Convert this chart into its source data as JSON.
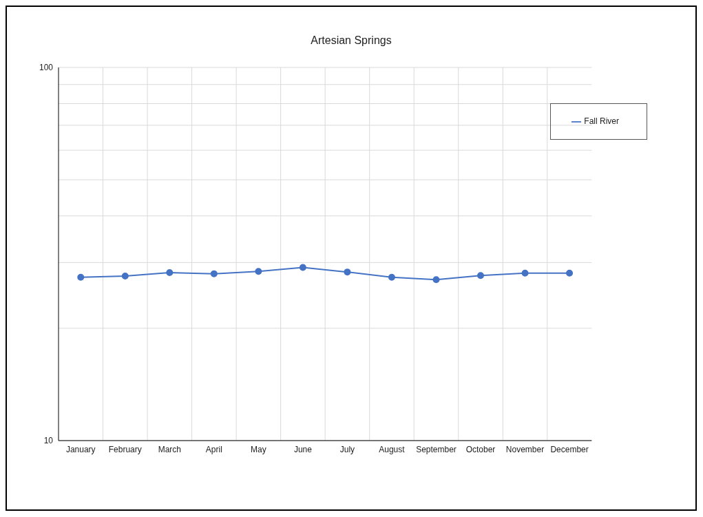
{
  "chart_data": {
    "type": "line",
    "title": "Artesian Springs",
    "categories": [
      "January",
      "February",
      "March",
      "April",
      "May",
      "June",
      "July",
      "August",
      "September",
      "October",
      "November",
      "December"
    ],
    "series": [
      {
        "name": "Fall River",
        "color": "#4472c4",
        "values": [
          27.4,
          27.6,
          28.2,
          28.0,
          28.4,
          29.1,
          28.3,
          27.4,
          27.0,
          27.7,
          28.1,
          28.1
        ]
      }
    ],
    "ylim": [
      10,
      100
    ],
    "yticks": [
      10,
      {
        "value": 20,
        "label": null
      },
      {
        "value": 30,
        "label": null
      },
      {
        "value": 40,
        "label": null
      },
      {
        "value": 50,
        "label": null
      },
      {
        "value": 60,
        "label": null
      },
      {
        "value": 70,
        "label": null
      },
      {
        "value": 80,
        "label": null
      },
      {
        "value": 90,
        "label": null
      },
      100
    ],
    "log": "y",
    "grid": true,
    "legend": "top right",
    "marker": "circle",
    "line_style": "solid"
  }
}
